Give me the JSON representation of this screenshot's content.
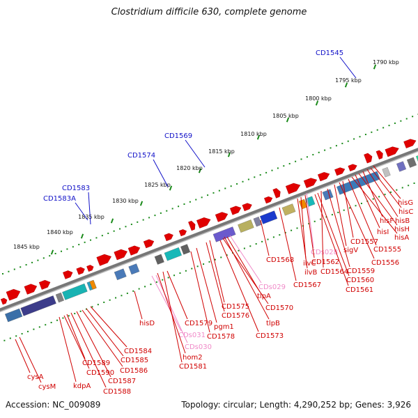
{
  "title": "Clostridium difficile 630, complete genome",
  "footer": {
    "accession": "Accession: NC_009089",
    "topology": "Topology: circular; Length: 4,290,252 bp; Genes: 3,926"
  },
  "colors": {
    "gene": "#e00000",
    "label_red": "#d00000",
    "label_blue": "#1010c8",
    "label_pink": "#f08ac8",
    "dots": "#1a8a1a",
    "backbone": "#777777"
  },
  "ticks": [
    {
      "label": "1790 kbp"
    },
    {
      "label": "1795 kbp"
    },
    {
      "label": "1800 kbp"
    },
    {
      "label": "1805 kbp"
    },
    {
      "label": "1810 kbp"
    },
    {
      "label": "1815 kbp"
    },
    {
      "label": "1820 kbp"
    },
    {
      "label": "1825 kbp"
    },
    {
      "label": "1830 kbp"
    },
    {
      "label": "1835 kbp"
    },
    {
      "label": "1840 kbp"
    },
    {
      "label": "1845 kbp"
    }
  ],
  "outer_labels": [
    {
      "text": "CD1545"
    },
    {
      "text": "CD1569"
    },
    {
      "text": "CD1574"
    },
    {
      "text": "CD1583"
    },
    {
      "text": "CD1583A"
    }
  ],
  "inner_labels": [
    {
      "text": "hisG",
      "color": "red"
    },
    {
      "text": "hisC",
      "color": "red"
    },
    {
      "text": "hisB",
      "color": "red"
    },
    {
      "text": "hisF",
      "color": "red"
    },
    {
      "text": "hisH",
      "color": "red"
    },
    {
      "text": "hisI",
      "color": "red"
    },
    {
      "text": "hisA",
      "color": "red"
    },
    {
      "text": "CD1555",
      "color": "red"
    },
    {
      "text": "CD1557",
      "color": "red"
    },
    {
      "text": "CD1556",
      "color": "red"
    },
    {
      "text": "sigV",
      "color": "red"
    },
    {
      "text": "CDs028",
      "color": "pink"
    },
    {
      "text": "CD1562",
      "color": "red"
    },
    {
      "text": "CD1559",
      "color": "red"
    },
    {
      "text": "ilvC",
      "color": "red"
    },
    {
      "text": "CD1564",
      "color": "red"
    },
    {
      "text": "CD1560",
      "color": "red"
    },
    {
      "text": "CD1568",
      "color": "red"
    },
    {
      "text": "ilvB",
      "color": "red"
    },
    {
      "text": "CD1561",
      "color": "red"
    },
    {
      "text": "CD1567",
      "color": "red"
    },
    {
      "text": "CDs029",
      "color": "pink"
    },
    {
      "text": "tlpA",
      "color": "red"
    },
    {
      "text": "CD1570",
      "color": "red"
    },
    {
      "text": "CD1575",
      "color": "red"
    },
    {
      "text": "CD1576",
      "color": "red"
    },
    {
      "text": "tlpB",
      "color": "red"
    },
    {
      "text": "hisD",
      "color": "red"
    },
    {
      "text": "CD1579",
      "color": "red"
    },
    {
      "text": "pgm1",
      "color": "red"
    },
    {
      "text": "CDs031",
      "color": "pink"
    },
    {
      "text": "CD1578",
      "color": "red"
    },
    {
      "text": "CD1573",
      "color": "red"
    },
    {
      "text": "CDs030",
      "color": "pink"
    },
    {
      "text": "CD1584",
      "color": "red"
    },
    {
      "text": "hom2",
      "color": "red"
    },
    {
      "text": "CD1585",
      "color": "red"
    },
    {
      "text": "CD1581",
      "color": "red"
    },
    {
      "text": "CD1589",
      "color": "red"
    },
    {
      "text": "CD1586",
      "color": "red"
    },
    {
      "text": "CD1590",
      "color": "red"
    },
    {
      "text": "CD1587",
      "color": "red"
    },
    {
      "text": "kdpA",
      "color": "red"
    },
    {
      "text": "CD1588",
      "color": "red"
    },
    {
      "text": "cysA",
      "color": "red"
    },
    {
      "text": "cysM",
      "color": "red"
    }
  ]
}
